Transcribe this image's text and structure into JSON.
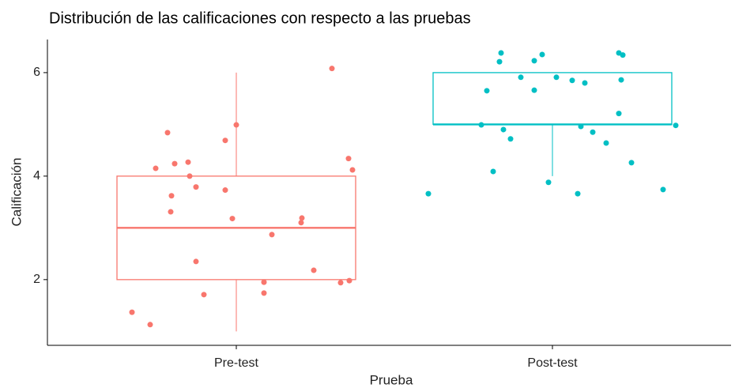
{
  "chart_data": {
    "type": "box",
    "title": "Distribución de las calificaciones con respecto a las pruebas",
    "x_label": "Prueba",
    "y_label": "Calificación",
    "categories": [
      "Pre-test",
      "Post-test"
    ],
    "ylim": [
      0.73,
      6.64
    ],
    "yticks": [
      2,
      4,
      6
    ],
    "grid": false,
    "boxes": [
      {
        "color": "#F8766D",
        "min": 1,
        "q1": 2,
        "median": 3,
        "q3": 4,
        "max": 6,
        "points": [
          1.37,
          1.13,
          4.15,
          4.84,
          4.24,
          4.27,
          4.0,
          3.79,
          3.62,
          3.31,
          2.35,
          1.71,
          4.69,
          3.73,
          4.99,
          3.18,
          2.87,
          1.95,
          1.74,
          3.19,
          3.1,
          2.18,
          6.08,
          1.94,
          1.98,
          4.34,
          4.12
        ]
      },
      {
        "color": "#00BFC4",
        "min": 4,
        "q1": 5,
        "median": 5,
        "q3": 6,
        "max": 6,
        "points": [
          3.66,
          4.99,
          4.09,
          6.21,
          6.38,
          5.65,
          4.9,
          4.72,
          5.91,
          6.23,
          6.35,
          5.66,
          5.91,
          5.85,
          5.8,
          3.88,
          3.66,
          4.96,
          4.85,
          4.64,
          6.38,
          6.34,
          5.86,
          5.21,
          4.26,
          3.74,
          4.98
        ]
      }
    ]
  }
}
